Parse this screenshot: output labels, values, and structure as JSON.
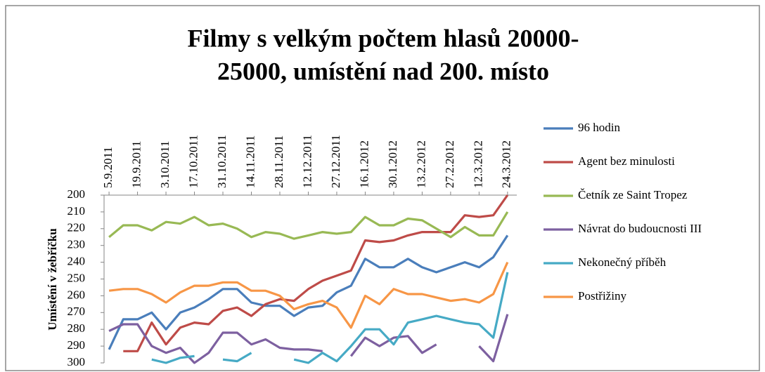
{
  "chart_data": {
    "type": "line",
    "title": "Filmy s velkým počtem hlasů 20000-25000, umístění nad 200. místo",
    "title_lines": [
      "Filmy s velkým počtem hlasů 20000-",
      "25000, umístění nad 200. místo"
    ],
    "y_label": "Umístění v žebříčku",
    "categories": [
      "5.9.2011",
      null,
      "19.9.2011",
      null,
      "3.10.2011",
      null,
      "17.10.2011",
      null,
      "31.10.2011",
      null,
      "14.11.2011",
      null,
      "28.11.2011",
      null,
      "12.12.2011",
      null,
      "27.12.2011",
      null,
      "16.1.2012",
      null,
      "30.1.2012",
      null,
      "13.2.2012",
      null,
      "27.2.2012",
      null,
      "12.3.2012",
      null,
      "24.3.2012"
    ],
    "ylim": [
      300,
      200
    ],
    "yticks": [
      200,
      210,
      220,
      230,
      240,
      250,
      260,
      270,
      280,
      290,
      300
    ],
    "grid": false,
    "legend": "right",
    "series": [
      {
        "name": "96 hodin",
        "color": "#4a7ebb",
        "values": [
          292,
          274,
          274,
          270,
          280,
          270,
          267,
          262,
          256,
          256,
          264,
          266,
          266,
          272,
          267,
          266,
          258,
          254,
          238,
          243,
          243,
          238,
          243,
          246,
          243,
          240,
          243,
          237,
          224
        ]
      },
      {
        "name": "Agent bez minulosti",
        "color": "#be4b48",
        "values": [
          null,
          293,
          293,
          276,
          289,
          279,
          276,
          277,
          269,
          267,
          272,
          265,
          262,
          263,
          256,
          251,
          248,
          245,
          227,
          228,
          227,
          224,
          222,
          222,
          222,
          212,
          213,
          212,
          200
        ]
      },
      {
        "name": "Četník ze Saint Tropez",
        "color": "#98b954",
        "values": [
          225,
          218,
          218,
          221,
          216,
          217,
          213,
          218,
          217,
          220,
          225,
          222,
          223,
          226,
          224,
          222,
          223,
          222,
          213,
          218,
          218,
          214,
          215,
          220,
          225,
          219,
          224,
          224,
          210
        ]
      },
      {
        "name": "Návrat do budoucnosti III",
        "color": "#7d60a0",
        "values": [
          281,
          277,
          277,
          290,
          294,
          291,
          300,
          294,
          282,
          282,
          289,
          286,
          291,
          292,
          292,
          293,
          null,
          296,
          285,
          290,
          285,
          284,
          294,
          289,
          null,
          null,
          290,
          299,
          271
        ]
      },
      {
        "name": "Nekonečný příběh",
        "color": "#46aac5",
        "values": [
          null,
          null,
          null,
          298,
          300,
          297,
          296,
          null,
          298,
          299,
          294,
          null,
          null,
          298,
          300,
          294,
          299,
          290,
          280,
          280,
          289,
          276,
          274,
          272,
          274,
          276,
          277,
          285,
          246
        ]
      },
      {
        "name": "Postřižiny",
        "color": "#f79646",
        "values": [
          257,
          256,
          256,
          259,
          264,
          258,
          254,
          254,
          252,
          252,
          257,
          257,
          260,
          268,
          265,
          263,
          267,
          279,
          260,
          265,
          256,
          259,
          259,
          261,
          263,
          262,
          264,
          259,
          240
        ]
      }
    ]
  }
}
